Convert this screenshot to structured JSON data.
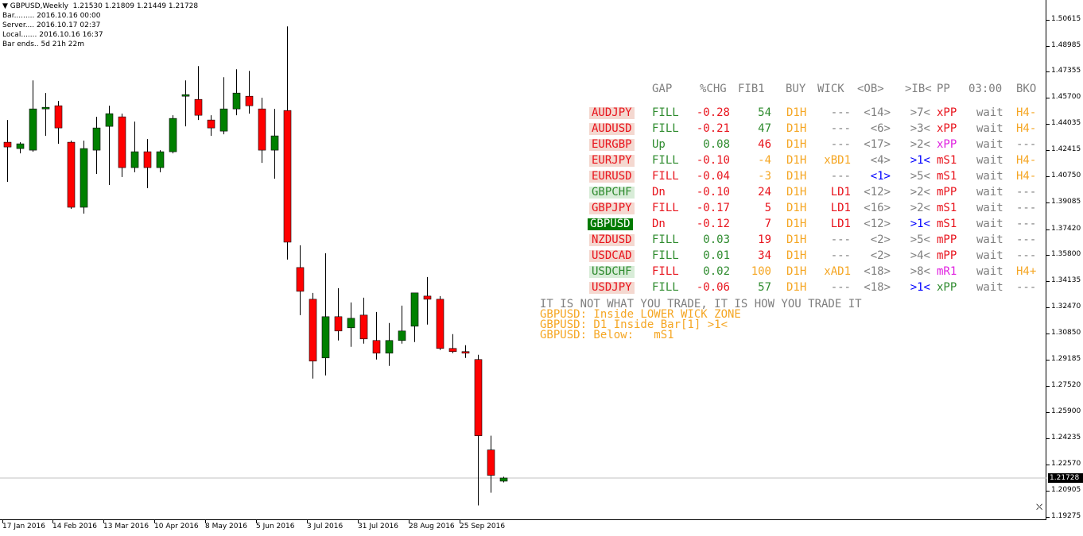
{
  "chart_header": {
    "symbol_line": "GBPUSD,Weekly  1.21530 1.21809 1.21449 1.21728",
    "bar": "Bar......... 2016.10.16 00:00",
    "server": "Server.... 2016.10.17 02:37",
    "local": "Local....... 2016.10.16 16:37",
    "bar_ends": "Bar ends.. 5d 21h 22m"
  },
  "price_axis": {
    "labels": [
      "1.50615",
      "1.48985",
      "1.47355",
      "1.45700",
      "1.44035",
      "1.42415",
      "1.40750",
      "1.39085",
      "1.37420",
      "1.35800",
      "1.34135",
      "1.32470",
      "1.30850",
      "1.29185",
      "1.27520",
      "1.25900",
      "1.24235",
      "1.22570",
      "1.20905",
      "1.19275"
    ],
    "current_price": "1.21728"
  },
  "time_axis": {
    "labels": [
      "17 Jan 2016",
      "14 Feb 2016",
      "13 Mar 2016",
      "10 Apr 2016",
      "8 May 2016",
      "5 Jun 2016",
      "3 Jul 2016",
      "31 Jul 2016",
      "28 Aug 2016",
      "25 Sep 2016"
    ]
  },
  "colors": {
    "bull": "#008000",
    "bear": "#ff0000",
    "fill_green": "#2e8b2e",
    "red_text": "#e8141d",
    "orange": "#f5a623",
    "gray": "#7f7f7f",
    "blue": "#0000ff",
    "magenta": "#e020e0",
    "pair_red_bg": "#f4d8d0",
    "pair_green_bg": "#d8ecd8",
    "pair_active_bg": "#007a00"
  },
  "candles": [
    {
      "o": 1.429,
      "h": 1.443,
      "l": 1.404,
      "c": 1.426
    },
    {
      "o": 1.425,
      "h": 1.429,
      "l": 1.422,
      "c": 1.428
    },
    {
      "o": 1.424,
      "h": 1.468,
      "l": 1.423,
      "c": 1.45
    },
    {
      "o": 1.45,
      "h": 1.46,
      "l": 1.433,
      "c": 1.451
    },
    {
      "o": 1.452,
      "h": 1.455,
      "l": 1.428,
      "c": 1.438
    },
    {
      "o": 1.429,
      "h": 1.43,
      "l": 1.387,
      "c": 1.388
    },
    {
      "o": 1.388,
      "h": 1.43,
      "l": 1.384,
      "c": 1.425
    },
    {
      "o": 1.424,
      "h": 1.445,
      "l": 1.409,
      "c": 1.438
    },
    {
      "o": 1.439,
      "h": 1.452,
      "l": 1.402,
      "c": 1.447
    },
    {
      "o": 1.445,
      "h": 1.447,
      "l": 1.407,
      "c": 1.413
    },
    {
      "o": 1.413,
      "h": 1.442,
      "l": 1.41,
      "c": 1.423
    },
    {
      "o": 1.423,
      "h": 1.431,
      "l": 1.4,
      "c": 1.413
    },
    {
      "o": 1.413,
      "h": 1.424,
      "l": 1.41,
      "c": 1.423
    },
    {
      "o": 1.423,
      "h": 1.446,
      "l": 1.422,
      "c": 1.444
    },
    {
      "o": 1.458,
      "h": 1.468,
      "l": 1.439,
      "c": 1.459
    },
    {
      "o": 1.456,
      "h": 1.477,
      "l": 1.443,
      "c": 1.446
    },
    {
      "o": 1.443,
      "h": 1.446,
      "l": 1.433,
      "c": 1.438
    },
    {
      "o": 1.436,
      "h": 1.47,
      "l": 1.434,
      "c": 1.45
    },
    {
      "o": 1.45,
      "h": 1.475,
      "l": 1.446,
      "c": 1.46
    },
    {
      "o": 1.458,
      "h": 1.474,
      "l": 1.447,
      "c": 1.452
    },
    {
      "o": 1.45,
      "h": 1.457,
      "l": 1.416,
      "c": 1.424
    },
    {
      "o": 1.424,
      "h": 1.45,
      "l": 1.406,
      "c": 1.433
    },
    {
      "o": 1.449,
      "h": 1.502,
      "l": 1.355,
      "c": 1.366
    },
    {
      "o": 1.35,
      "h": 1.364,
      "l": 1.32,
      "c": 1.335
    },
    {
      "o": 1.33,
      "h": 1.334,
      "l": 1.28,
      "c": 1.291
    },
    {
      "o": 1.293,
      "h": 1.359,
      "l": 1.282,
      "c": 1.319
    },
    {
      "o": 1.319,
      "h": 1.337,
      "l": 1.304,
      "c": 1.31
    },
    {
      "o": 1.312,
      "h": 1.328,
      "l": 1.3,
      "c": 1.318
    },
    {
      "o": 1.32,
      "h": 1.331,
      "l": 1.302,
      "c": 1.305
    },
    {
      "o": 1.304,
      "h": 1.322,
      "l": 1.292,
      "c": 1.296
    },
    {
      "o": 1.296,
      "h": 1.315,
      "l": 1.288,
      "c": 1.304
    },
    {
      "o": 1.304,
      "h": 1.326,
      "l": 1.302,
      "c": 1.31
    },
    {
      "o": 1.313,
      "h": 1.331,
      "l": 1.303,
      "c": 1.334
    },
    {
      "o": 1.332,
      "h": 1.344,
      "l": 1.314,
      "c": 1.33
    },
    {
      "o": 1.33,
      "h": 1.332,
      "l": 1.298,
      "c": 1.299
    },
    {
      "o": 1.299,
      "h": 1.308,
      "l": 1.296,
      "c": 1.297
    },
    {
      "o": 1.297,
      "h": 1.301,
      "l": 1.293,
      "c": 1.296
    },
    {
      "o": 1.292,
      "h": 1.295,
      "l": 1.2,
      "c": 1.244
    },
    {
      "o": 1.235,
      "h": 1.244,
      "l": 1.208,
      "c": 1.219
    },
    {
      "o": 1.2153,
      "h": 1.2181,
      "l": 1.2145,
      "c": 1.2173
    }
  ],
  "dashboard": {
    "headers": [
      "GAP",
      "%CHG",
      "FIB1",
      "BUY",
      "WICK",
      "<OB>",
      ">IB<",
      "PP",
      "03:00",
      "BKO"
    ],
    "rows": [
      {
        "pair": "AUDJPY",
        "gap": "FILL",
        "chg": "-0.28",
        "fib": "54",
        "buy": "D1H",
        "wick": "---",
        "ob": "<14>",
        "ib": ">7<",
        "pp": "xPP",
        "time": "wait",
        "bko": "H4-",
        "style": "red",
        "gapc": "green",
        "chgc": "red",
        "fibc": "green",
        "wickc": "gray",
        "obc": "gray",
        "ibc": "gray",
        "ppc": "red",
        "bkoc": "orange"
      },
      {
        "pair": "AUDUSD",
        "gap": "FILL",
        "chg": "-0.21",
        "fib": "47",
        "buy": "D1H",
        "wick": "---",
        "ob": "<6>",
        "ib": ">3<",
        "pp": "xPP",
        "time": "wait",
        "bko": "H4-",
        "style": "red",
        "gapc": "green",
        "chgc": "red",
        "fibc": "green",
        "wickc": "gray",
        "obc": "gray",
        "ibc": "gray",
        "ppc": "red",
        "bkoc": "orange"
      },
      {
        "pair": "EURGBP",
        "gap": "Up",
        "chg": "0.08",
        "fib": "46",
        "buy": "D1H",
        "wick": "---",
        "ob": "<17>",
        "ib": ">2<",
        "pp": "xPP",
        "time": "wait",
        "bko": "---",
        "style": "red",
        "gapc": "green",
        "chgc": "green",
        "fibc": "red",
        "wickc": "gray",
        "obc": "gray",
        "ibc": "gray",
        "ppc": "magenta",
        "bkoc": "gray"
      },
      {
        "pair": "EURJPY",
        "gap": "FILL",
        "chg": "-0.10",
        "fib": "-4",
        "buy": "D1H",
        "wick": "xBD1",
        "ob": "<4>",
        "ib": ">1<",
        "pp": "mS1",
        "time": "wait",
        "bko": "H4-",
        "style": "red",
        "gapc": "green",
        "chgc": "red",
        "fibc": "orange",
        "wickc": "orange",
        "obc": "gray",
        "ibc": "blue",
        "ppc": "red",
        "bkoc": "orange"
      },
      {
        "pair": "EURUSD",
        "gap": "FILL",
        "chg": "-0.04",
        "fib": "-3",
        "buy": "D1H",
        "wick": "---",
        "ob": "<1>",
        "ib": ">5<",
        "pp": "mS1",
        "time": "wait",
        "bko": "H4-",
        "style": "red",
        "gapc": "red",
        "chgc": "red",
        "fibc": "orange",
        "wickc": "gray",
        "obc": "blue",
        "ibc": "gray",
        "ppc": "red",
        "bkoc": "orange"
      },
      {
        "pair": "GBPCHF",
        "gap": "Dn",
        "chg": "-0.10",
        "fib": "24",
        "buy": "D1H",
        "wick": "LD1",
        "ob": "<12>",
        "ib": ">2<",
        "pp": "mPP",
        "time": "wait",
        "bko": "---",
        "style": "green",
        "gapc": "red",
        "chgc": "red",
        "fibc": "red",
        "wickc": "red",
        "obc": "gray",
        "ibc": "gray",
        "ppc": "red",
        "bkoc": "gray"
      },
      {
        "pair": "GBPJPY",
        "gap": "FILL",
        "chg": "-0.17",
        "fib": "5",
        "buy": "D1H",
        "wick": "LD1",
        "ob": "<16>",
        "ib": ">2<",
        "pp": "mS1",
        "time": "wait",
        "bko": "---",
        "style": "red",
        "gapc": "red",
        "chgc": "red",
        "fibc": "red",
        "wickc": "red",
        "obc": "gray",
        "ibc": "gray",
        "ppc": "red",
        "bkoc": "gray"
      },
      {
        "pair": "GBPUSD",
        "gap": "Dn",
        "chg": "-0.12",
        "fib": "7",
        "buy": "D1H",
        "wick": "LD1",
        "ob": "<12>",
        "ib": ">1<",
        "pp": "mS1",
        "time": "wait",
        "bko": "---",
        "style": "active",
        "gapc": "red",
        "chgc": "red",
        "fibc": "red",
        "wickc": "red",
        "obc": "gray",
        "ibc": "blue",
        "ppc": "red",
        "bkoc": "gray"
      },
      {
        "pair": "NZDUSD",
        "gap": "FILL",
        "chg": "0.03",
        "fib": "19",
        "buy": "D1H",
        "wick": "---",
        "ob": "<2>",
        "ib": ">5<",
        "pp": "mPP",
        "time": "wait",
        "bko": "---",
        "style": "red",
        "gapc": "green",
        "chgc": "green",
        "fibc": "red",
        "wickc": "gray",
        "obc": "gray",
        "ibc": "gray",
        "ppc": "red",
        "bkoc": "gray"
      },
      {
        "pair": "USDCAD",
        "gap": "FILL",
        "chg": "0.01",
        "fib": "34",
        "buy": "D1H",
        "wick": "---",
        "ob": "<2>",
        "ib": ">4<",
        "pp": "mPP",
        "time": "wait",
        "bko": "---",
        "style": "red",
        "gapc": "green",
        "chgc": "green",
        "fibc": "red",
        "wickc": "gray",
        "obc": "gray",
        "ibc": "gray",
        "ppc": "red",
        "bkoc": "gray"
      },
      {
        "pair": "USDCHF",
        "gap": "FILL",
        "chg": "0.02",
        "fib": "100",
        "buy": "D1H",
        "wick": "xAD1",
        "ob": "<18>",
        "ib": ">8<",
        "pp": "mR1",
        "time": "wait",
        "bko": "H4+",
        "style": "green",
        "gapc": "red",
        "chgc": "green",
        "fibc": "orange",
        "wickc": "orange",
        "obc": "gray",
        "ibc": "gray",
        "ppc": "magenta",
        "bkoc": "orange"
      },
      {
        "pair": "USDJPY",
        "gap": "FILL",
        "chg": "-0.06",
        "fib": "57",
        "buy": "D1H",
        "wick": "---",
        "ob": "<18>",
        "ib": ">1<",
        "pp": "xPP",
        "time": "wait",
        "bko": "---",
        "style": "red",
        "gapc": "green",
        "chgc": "red",
        "fibc": "green",
        "wickc": "gray",
        "obc": "gray",
        "ibc": "blue",
        "ppc": "green",
        "bkoc": "gray"
      }
    ],
    "messages": {
      "motto": "IT IS NOT WHAT YOU TRADE, IT IS HOW YOU TRADE IT",
      "line1": "GBPUSD: Inside LOWER WICK ZONE",
      "line2": "GBPUSD: D1 Inside Bar[1] >1<",
      "line3": "GBPUSD: Below:   mS1"
    }
  }
}
